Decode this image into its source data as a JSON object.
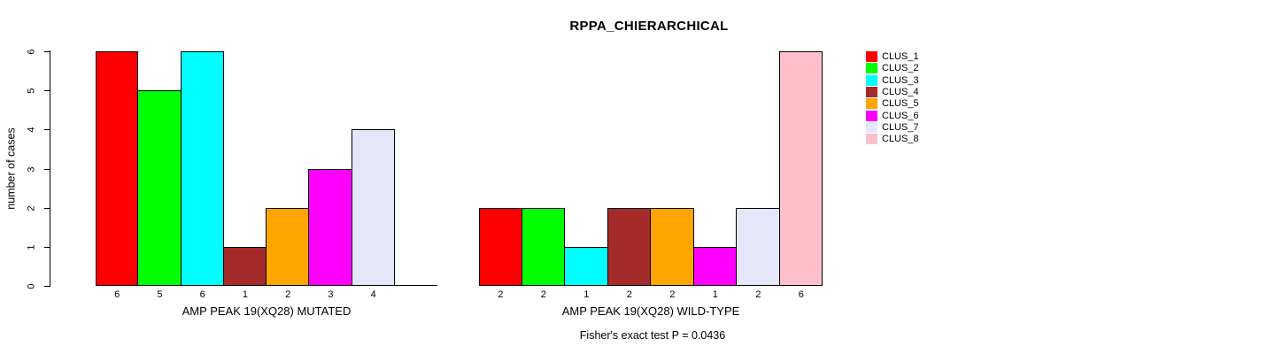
{
  "title": "RPPA_CHIERARCHICAL",
  "ylabel": "number of cases",
  "fisher_text": "Fisher's exact test P = 0.0436",
  "legend": {
    "position": "right",
    "entries": [
      {
        "label": "CLUS_1",
        "color": "#ff0000"
      },
      {
        "label": "CLUS_2",
        "color": "#00ff00"
      },
      {
        "label": "CLUS_3",
        "color": "#00ffff"
      },
      {
        "label": "CLUS_4",
        "color": "#a52a2a"
      },
      {
        "label": "CLUS_5",
        "color": "#ffa500"
      },
      {
        "label": "CLUS_6",
        "color": "#ff00ff"
      },
      {
        "label": "CLUS_7",
        "color": "#e6e6fa"
      },
      {
        "label": "CLUS_8",
        "color": "#ffc0cb"
      }
    ]
  },
  "chart_data": [
    {
      "type": "bar",
      "panel": "MUTATED",
      "xlabel": "AMP PEAK 19(XQ28) MUTATED",
      "ylabel": "number of cases",
      "ylim": [
        0,
        6
      ],
      "yticks": [
        0,
        1,
        2,
        3,
        4,
        5,
        6
      ],
      "grid": false,
      "categories": [
        "CLUS_1",
        "CLUS_2",
        "CLUS_3",
        "CLUS_4",
        "CLUS_5",
        "CLUS_6",
        "CLUS_7",
        "CLUS_8"
      ],
      "values": [
        6,
        5,
        6,
        1,
        2,
        3,
        4,
        0
      ],
      "bar_labels": [
        "6",
        "5",
        "6",
        "1",
        "2",
        "3",
        "4",
        ""
      ],
      "colors": [
        "#ff0000",
        "#00ff00",
        "#00ffff",
        "#a52a2a",
        "#ffa500",
        "#ff00ff",
        "#e6e6fa",
        "#ffc0cb"
      ]
    },
    {
      "type": "bar",
      "panel": "WILD-TYPE",
      "xlabel": "AMP PEAK 19(XQ28) WILD-TYPE",
      "ylabel": "number of cases",
      "ylim": [
        0,
        6
      ],
      "yticks": [
        0,
        1,
        2,
        3,
        4,
        5,
        6
      ],
      "grid": false,
      "categories": [
        "CLUS_1",
        "CLUS_2",
        "CLUS_3",
        "CLUS_4",
        "CLUS_5",
        "CLUS_6",
        "CLUS_7",
        "CLUS_8"
      ],
      "values": [
        2,
        2,
        1,
        2,
        2,
        1,
        2,
        6
      ],
      "bar_labels": [
        "2",
        "2",
        "1",
        "2",
        "2",
        "1",
        "2",
        "6"
      ],
      "colors": [
        "#ff0000",
        "#00ff00",
        "#00ffff",
        "#a52a2a",
        "#ffa500",
        "#ff00ff",
        "#e6e6fa",
        "#ffc0cb"
      ]
    }
  ]
}
